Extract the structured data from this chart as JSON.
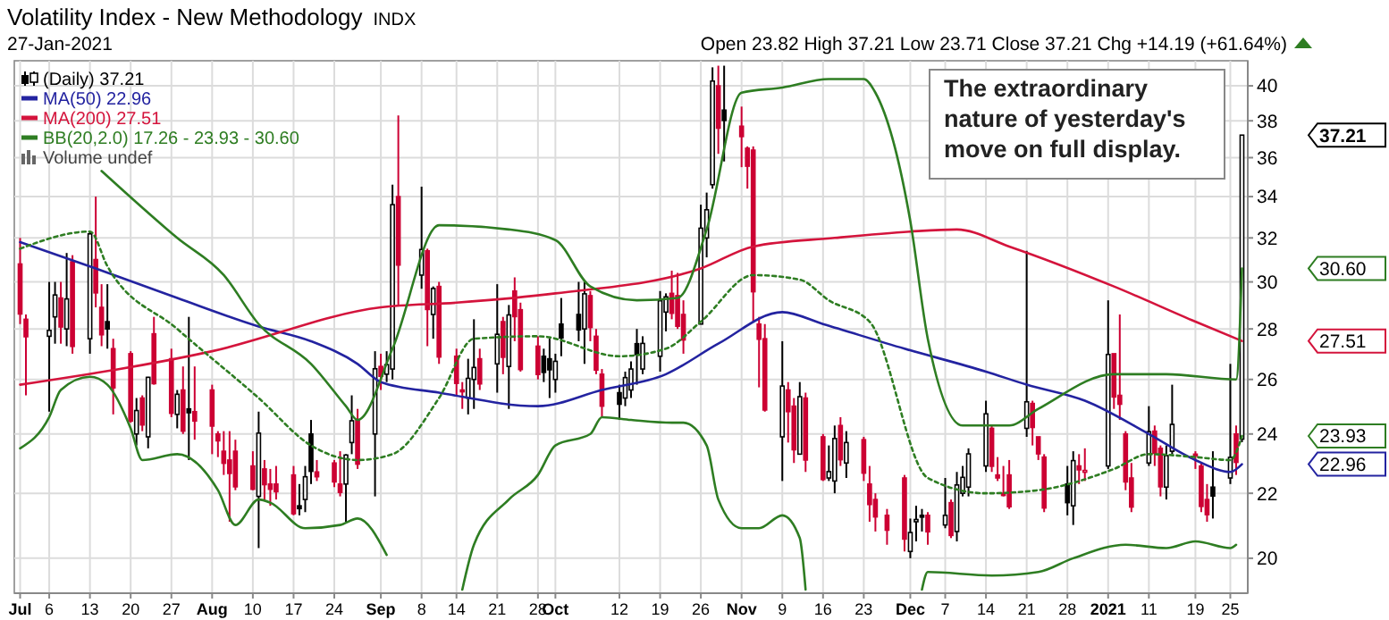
{
  "chart_data": {
    "type": "candlestick",
    "title": "Volatility Index - New Methodology",
    "subtitle": "27-Jan-2021",
    "annotations": [
      "INDX",
      "Open 23.82 High 37.21 Low 23.71 Close 37.21 Chg +14.19 (+61.64%)",
      "Volume undef",
      "The extraordinary nature of yesterday's move on full display.",
      "37.21",
      "30.60",
      "27.51",
      "23.93",
      "22.96"
    ],
    "x": [
      "2020-07-01",
      "2020-07-02",
      "2020-07-06",
      "2020-07-07",
      "2020-07-08",
      "2020-07-09",
      "2020-07-10",
      "2020-07-13",
      "2020-07-14",
      "2020-07-15",
      "2020-07-16",
      "2020-07-17",
      "2020-07-20",
      "2020-07-21",
      "2020-07-22",
      "2020-07-23",
      "2020-07-24",
      "2020-07-27",
      "2020-07-28",
      "2020-07-29",
      "2020-07-30",
      "2020-07-31",
      "2020-08-03",
      "2020-08-04",
      "2020-08-05",
      "2020-08-06",
      "2020-08-07",
      "2020-08-10",
      "2020-08-11",
      "2020-08-12",
      "2020-08-13",
      "2020-08-14",
      "2020-08-17",
      "2020-08-18",
      "2020-08-19",
      "2020-08-20",
      "2020-08-21",
      "2020-08-24",
      "2020-08-25",
      "2020-08-26",
      "2020-08-27",
      "2020-08-28",
      "2020-08-31",
      "2020-09-01",
      "2020-09-02",
      "2020-09-03",
      "2020-09-04",
      "2020-09-08",
      "2020-09-09",
      "2020-09-10",
      "2020-09-11",
      "2020-09-14",
      "2020-09-15",
      "2020-09-16",
      "2020-09-17",
      "2020-09-18",
      "2020-09-21",
      "2020-09-22",
      "2020-09-23",
      "2020-09-24",
      "2020-09-25",
      "2020-09-28",
      "2020-09-29",
      "2020-09-30",
      "2020-10-01",
      "2020-10-02",
      "2020-10-05",
      "2020-10-06",
      "2020-10-07",
      "2020-10-08",
      "2020-10-09",
      "2020-10-12",
      "2020-10-13",
      "2020-10-14",
      "2020-10-15",
      "2020-10-16",
      "2020-10-19",
      "2020-10-20",
      "2020-10-21",
      "2020-10-22",
      "2020-10-23",
      "2020-10-26",
      "2020-10-27",
      "2020-10-28",
      "2020-10-29",
      "2020-10-30",
      "2020-11-02",
      "2020-11-03",
      "2020-11-04",
      "2020-11-05",
      "2020-11-06",
      "2020-11-09",
      "2020-11-10",
      "2020-11-11",
      "2020-11-12",
      "2020-11-13",
      "2020-11-16",
      "2020-11-17",
      "2020-11-18",
      "2020-11-19",
      "2020-11-20",
      "2020-11-23",
      "2020-11-24",
      "2020-11-25",
      "2020-11-27",
      "2020-11-30",
      "2020-12-01",
      "2020-12-02",
      "2020-12-03",
      "2020-12-04",
      "2020-12-07",
      "2020-12-08",
      "2020-12-09",
      "2020-12-10",
      "2020-12-11",
      "2020-12-14",
      "2020-12-15",
      "2020-12-16",
      "2020-12-17",
      "2020-12-18",
      "2020-12-21",
      "2020-12-22",
      "2020-12-23",
      "2020-12-24",
      "2020-12-28",
      "2020-12-29",
      "2020-12-30",
      "2020-12-31",
      "2021-01-04",
      "2021-01-05",
      "2021-01-06",
      "2021-01-07",
      "2021-01-08",
      "2021-01-11",
      "2021-01-12",
      "2021-01-13",
      "2021-01-14",
      "2021-01-15",
      "2021-01-19",
      "2021-01-20",
      "2021-01-21",
      "2021-01-22",
      "2021-01-25",
      "2021-01-26",
      "2021-01-27"
    ],
    "xlim": [
      "2020-06-30",
      "2021-01-28"
    ],
    "xticks": [
      {
        "value": "2020-07-01",
        "label": "Jul"
      },
      {
        "value": "2020-07-06",
        "label": "6"
      },
      {
        "value": "2020-07-13",
        "label": "13"
      },
      {
        "value": "2020-07-20",
        "label": "20"
      },
      {
        "value": "2020-07-27",
        "label": "27"
      },
      {
        "value": "2020-08-03",
        "label": "Aug"
      },
      {
        "value": "2020-08-10",
        "label": "10"
      },
      {
        "value": "2020-08-17",
        "label": "17"
      },
      {
        "value": "2020-08-24",
        "label": "24"
      },
      {
        "value": "2020-09-01",
        "label": "Sep"
      },
      {
        "value": "2020-09-08",
        "label": "8"
      },
      {
        "value": "2020-09-14",
        "label": "14"
      },
      {
        "value": "2020-09-21",
        "label": "21"
      },
      {
        "value": "2020-09-28",
        "label": "28"
      },
      {
        "value": "2020-10-01",
        "label": "Oct"
      },
      {
        "value": "2020-10-12",
        "label": "12"
      },
      {
        "value": "2020-10-19",
        "label": "19"
      },
      {
        "value": "2020-10-26",
        "label": "26"
      },
      {
        "value": "2020-11-02",
        "label": "Nov"
      },
      {
        "value": "2020-11-09",
        "label": "9"
      },
      {
        "value": "2020-11-16",
        "label": "16"
      },
      {
        "value": "2020-11-23",
        "label": "23"
      },
      {
        "value": "2020-12-01",
        "label": "Dec"
      },
      {
        "value": "2020-12-07",
        "label": "7"
      },
      {
        "value": "2020-12-14",
        "label": "14"
      },
      {
        "value": "2020-12-21",
        "label": "21"
      },
      {
        "value": "2020-12-28",
        "label": "28"
      },
      {
        "value": "2021-01-04",
        "label": "2021"
      },
      {
        "value": "2021-01-11",
        "label": "11"
      },
      {
        "value": "2021-01-19",
        "label": "19"
      },
      {
        "value": "2021-01-25",
        "label": "25"
      }
    ],
    "ylim": [
      19,
      41.5
    ],
    "yticks": [
      20,
      22,
      24,
      26,
      28,
      30,
      32,
      34,
      36,
      38,
      40
    ],
    "log": true,
    "grid": true,
    "legend": "top left",
    "series": [
      {
        "type": "candlestick",
        "name": "(Daily) 37.21",
        "color": "#000000",
        "colors": [
          "#cc0033",
          "#cc0033",
          "#000000",
          "#000000",
          "#cc0033",
          "#000000",
          "#cc0033",
          "#000000",
          "#cc0033",
          "#cc0033",
          "#000000",
          "#cc0033",
          "#cc0033",
          "#000000",
          "#cc0033",
          "#000000",
          "#cc0033",
          "#cc0033",
          "#000000",
          "#cc0033",
          "#000000",
          "#cc0033",
          "#cc0033",
          "#cc0033",
          "#cc0033",
          "#cc0033",
          "#cc0033",
          "#cc0033",
          "#000000",
          "#cc0033",
          "#cc0033",
          "#cc0033",
          "#cc0033",
          "#000000",
          "#000000",
          "#000000",
          "#cc0033",
          "#cc0033",
          "#cc0033",
          "#000000",
          "#000000",
          "#cc0033",
          "#000000",
          "#cc0033",
          "#000000",
          "#000000",
          "#cc0033",
          "#000000",
          "#cc0033",
          "#000000",
          "#cc0033",
          "#cc0033",
          "#cc0033",
          "#000000",
          "#000000",
          "#cc0033",
          "#000000",
          "#cc0033",
          "#000000",
          "#cc0033",
          "#cc0033",
          "#cc0033",
          "#000000",
          "#000000",
          "#000000",
          "#000000",
          "#000000",
          "#000000",
          "#cc0033",
          "#cc0033",
          "#cc0033",
          "#000000",
          "#000000",
          "#000000",
          "#000000",
          "#000000",
          "#000000",
          "#000000",
          "#cc0033",
          "#cc0033",
          "#cc0033",
          "#000000",
          "#000000",
          "#000000",
          "#cc0033",
          "#000000",
          "#cc0033",
          "#cc0033",
          "#cc0033",
          "#cc0033",
          "#cc0033",
          "#000000",
          "#cc0033",
          "#cc0033",
          "#000000",
          "#cc0033",
          "#cc0033",
          "#000000",
          "#000000",
          "#cc0033",
          "#000000",
          "#cc0033",
          "#cc0033",
          "#cc0033",
          "#cc0033",
          "#cc0033",
          "#000000",
          "#000000",
          "#000000",
          "#cc0033",
          "#000000",
          "#cc0033",
          "#000000",
          "#000000",
          "#000000",
          "#000000",
          "#cc0033",
          "#cc0033",
          "#cc0033",
          "#cc0033",
          "#000000",
          "#cc0033",
          "#cc0033",
          "#cc0033",
          "#000000",
          "#000000",
          "#cc0033",
          "#cc0033",
          "#000000",
          "#cc0033",
          "#cc0033",
          "#cc0033",
          "#cc0033",
          "#000000",
          "#cc0033",
          "#cc0033",
          "#000000",
          "#000000",
          "#cc0033",
          "#cc0033",
          "#cc0033",
          "#000000",
          "#000000",
          "#cc0033",
          "#000000"
        ],
        "ohlc": [
          [
            30.8,
            32.0,
            28.2,
            28.62
          ],
          [
            28.4,
            28.6,
            25.4,
            27.68
          ],
          [
            27.7,
            30.0,
            24.8,
            27.94
          ],
          [
            28.5,
            30.0,
            27.4,
            29.43
          ],
          [
            29.3,
            30.0,
            27.4,
            28.08
          ],
          [
            28.0,
            31.3,
            27.3,
            29.26
          ],
          [
            30.9,
            31.2,
            27.0,
            27.29
          ],
          [
            27.6,
            32.3,
            27.0,
            32.19
          ],
          [
            31.0,
            34.0,
            28.9,
            29.52
          ],
          [
            28.9,
            29.9,
            27.3,
            27.76
          ],
          [
            28.3,
            29.9,
            27.2,
            28.0
          ],
          [
            27.2,
            27.6,
            24.7,
            25.68
          ],
          [
            27.0,
            27.1,
            24.4,
            24.46
          ],
          [
            24.0,
            25.3,
            23.6,
            24.84
          ],
          [
            25.3,
            25.4,
            24.1,
            24.32
          ],
          [
            23.9,
            26.1,
            23.5,
            26.08
          ],
          [
            27.8,
            28.5,
            25.8,
            25.84
          ],
          [
            26.8,
            27.2,
            24.6,
            24.74
          ],
          [
            24.7,
            25.6,
            24.2,
            25.44
          ],
          [
            25.6,
            26.5,
            24.0,
            24.1
          ],
          [
            24.9,
            28.5,
            23.1,
            24.76
          ],
          [
            24.8,
            26.5,
            23.8,
            24.46
          ],
          [
            25.6,
            25.8,
            23.3,
            24.28
          ],
          [
            24.0,
            24.1,
            23.2,
            23.76
          ],
          [
            23.4,
            24.1,
            22.6,
            22.99
          ],
          [
            23.1,
            24.1,
            21.1,
            22.65
          ],
          [
            23.4,
            23.8,
            22.1,
            22.21
          ],
          [
            22.9,
            23.4,
            22.1,
            22.13
          ],
          [
            21.9,
            24.8,
            20.3,
            24.03
          ],
          [
            22.8,
            23.1,
            21.8,
            22.28
          ],
          [
            22.3,
            22.8,
            21.6,
            22.13
          ],
          [
            22.3,
            22.9,
            21.8,
            22.05
          ],
          [
            22.6,
            22.9,
            21.3,
            21.35
          ],
          [
            21.6,
            22.3,
            21.3,
            21.51
          ],
          [
            21.8,
            22.9,
            21.4,
            22.54
          ],
          [
            24.0,
            24.5,
            22.3,
            22.72
          ],
          [
            22.7,
            23.1,
            22.4,
            22.54
          ],
          [
            23.0,
            23.1,
            22.2,
            22.37
          ],
          [
            22.3,
            23.4,
            21.9,
            22.03
          ],
          [
            22.3,
            23.3,
            21.1,
            23.27
          ],
          [
            23.7,
            25.4,
            23.3,
            24.47
          ],
          [
            24.5,
            24.9,
            22.8,
            22.96
          ],
          [
            24.0,
            27.1,
            21.9,
            26.41
          ],
          [
            26.5,
            27.0,
            25.6,
            26.12
          ],
          [
            26.2,
            27.1,
            25.9,
            26.57
          ],
          [
            26.4,
            34.6,
            26.0,
            33.6
          ],
          [
            34.0,
            38.3,
            29.0,
            30.75
          ],
          [
            30.3,
            34.5,
            29.7,
            31.46
          ],
          [
            31.4,
            31.5,
            27.3,
            28.81
          ],
          [
            28.6,
            29.8,
            27.6,
            29.71
          ],
          [
            29.8,
            30.0,
            26.6,
            26.87
          ],
          [
            26.9,
            27.2,
            25.4,
            25.85
          ],
          [
            25.6,
            25.9,
            24.9,
            25.59
          ],
          [
            25.3,
            26.8,
            24.7,
            26.04
          ],
          [
            26.0,
            28.4,
            24.9,
            26.46
          ],
          [
            26.8,
            27.2,
            25.6,
            25.83
          ],
          [
            26.6,
            29.9,
            25.5,
            27.78
          ],
          [
            28.3,
            28.5,
            26.2,
            26.86
          ],
          [
            26.5,
            29.0,
            24.9,
            28.58
          ],
          [
            29.6,
            30.2,
            27.5,
            28.51
          ],
          [
            28.8,
            29.1,
            26.3,
            26.38
          ],
          [
            27.3,
            27.7,
            26.0,
            26.19
          ],
          [
            26.9,
            27.2,
            25.9,
            26.27
          ],
          [
            26.8,
            27.6,
            25.3,
            26.37
          ],
          [
            26.0,
            27.0,
            25.5,
            26.7
          ],
          [
            28.2,
            29.3,
            26.9,
            27.63
          ],
          [
            28.6,
            30.0,
            27.5,
            27.96
          ],
          [
            28.0,
            30.0,
            26.6,
            29.48
          ],
          [
            29.4,
            29.6,
            27.5,
            28.06
          ],
          [
            27.7,
            28.0,
            26.2,
            26.36
          ],
          [
            26.2,
            26.4,
            24.6,
            25.0
          ],
          [
            25.5,
            25.8,
            24.5,
            25.07
          ],
          [
            25.3,
            26.3,
            25.0,
            26.07
          ],
          [
            25.6,
            26.7,
            25.3,
            26.4
          ],
          [
            27.4,
            28.0,
            25.8,
            26.97
          ],
          [
            26.4,
            27.7,
            26.2,
            27.41
          ],
          [
            26.9,
            29.6,
            26.3,
            29.18
          ],
          [
            28.7,
            29.5,
            27.9,
            29.35
          ],
          [
            29.5,
            30.5,
            28.4,
            28.65
          ],
          [
            29.4,
            30.4,
            28.0,
            28.11
          ],
          [
            28.6,
            29.2,
            27.0,
            27.55
          ],
          [
            28.2,
            33.6,
            28.2,
            32.46
          ],
          [
            32.0,
            34.2,
            31.1,
            33.35
          ],
          [
            34.6,
            41.1,
            34.4,
            40.28
          ],
          [
            40.0,
            41.2,
            36.2,
            37.59
          ],
          [
            38.6,
            41.2,
            35.8,
            38.02
          ],
          [
            37.7,
            38.8,
            35.5,
            37.13
          ],
          [
            36.5,
            36.6,
            34.4,
            35.55
          ],
          [
            36.4,
            36.6,
            28.3,
            29.57
          ],
          [
            28.2,
            28.5,
            25.7,
            27.58
          ],
          [
            27.6,
            28.2,
            24.8,
            24.86
          ],
          [
            23.9,
            27.5,
            22.4,
            25.75
          ],
          [
            25.6,
            25.9,
            23.7,
            24.8
          ],
          [
            25.0,
            25.3,
            23.0,
            23.45
          ],
          [
            23.3,
            25.9,
            23.3,
            25.35
          ],
          [
            25.3,
            25.5,
            22.7,
            23.1
          ],
          [
            23.9,
            24.0,
            22.4,
            22.45
          ],
          [
            22.5,
            23.6,
            22.4,
            22.71
          ],
          [
            22.4,
            24.3,
            22.0,
            23.84
          ],
          [
            24.3,
            24.6,
            22.9,
            23.11
          ],
          [
            23.0,
            24.1,
            22.5,
            23.7
          ],
          [
            23.8,
            23.9,
            22.4,
            22.66
          ],
          [
            22.3,
            22.9,
            21.1,
            21.64
          ],
          [
            21.8,
            22.0,
            20.8,
            21.25
          ],
          [
            21.3,
            21.5,
            20.4,
            20.84
          ],
          [
            22.5,
            22.6,
            20.2,
            20.57
          ],
          [
            20.2,
            21.2,
            20.0,
            20.77
          ],
          [
            21.1,
            21.6,
            20.5,
            21.17
          ],
          [
            21.3,
            21.5,
            20.8,
            21.28
          ],
          [
            21.3,
            21.4,
            20.4,
            20.79
          ],
          [
            21.0,
            22.5,
            20.9,
            21.3
          ],
          [
            21.7,
            21.8,
            20.6,
            20.68
          ],
          [
            20.8,
            22.7,
            20.5,
            22.27
          ],
          [
            22.0,
            22.9,
            21.9,
            22.52
          ],
          [
            22.2,
            23.5,
            21.9,
            23.31
          ],
          [
            22.9,
            25.2,
            22.7,
            24.72
          ],
          [
            24.2,
            24.3,
            22.7,
            22.89
          ],
          [
            22.6,
            23.2,
            22.4,
            22.5
          ],
          [
            22.0,
            22.9,
            21.9,
            21.93
          ],
          [
            22.6,
            23.1,
            21.5,
            21.57
          ],
          [
            24.2,
            31.4,
            23.9,
            25.16
          ],
          [
            25.1,
            25.2,
            23.6,
            24.23
          ],
          [
            23.9,
            23.9,
            23.1,
            23.31
          ],
          [
            23.2,
            23.3,
            21.4,
            21.53
          ],
          [
            22.3,
            22.9,
            21.3,
            21.7
          ],
          [
            21.6,
            23.4,
            21.0,
            23.08
          ],
          [
            22.9,
            23.3,
            22.3,
            22.77
          ],
          [
            22.7,
            23.5,
            22.4,
            22.75
          ],
          [
            22.9,
            29.2,
            22.8,
            26.97
          ],
          [
            27.0,
            27.0,
            24.9,
            25.34
          ],
          [
            25.4,
            28.6,
            24.5,
            25.07
          ],
          [
            24.0,
            24.1,
            22.1,
            22.37
          ],
          [
            22.5,
            23.0,
            21.4,
            21.56
          ],
          [
            23.0,
            25.0,
            22.9,
            24.08
          ],
          [
            24.1,
            24.3,
            22.9,
            23.33
          ],
          [
            23.5,
            23.6,
            21.9,
            22.21
          ],
          [
            22.2,
            23.6,
            21.8,
            23.25
          ],
          [
            23.4,
            25.8,
            23.3,
            24.34
          ],
          [
            23.3,
            23.4,
            22.8,
            23.24
          ],
          [
            22.9,
            23.0,
            21.4,
            21.58
          ],
          [
            21.8,
            22.3,
            21.1,
            21.32
          ],
          [
            22.2,
            23.4,
            21.2,
            21.91
          ],
          [
            22.5,
            26.6,
            22.3,
            23.19
          ],
          [
            24.0,
            24.3,
            22.6,
            23.02
          ],
          [
            23.82,
            37.21,
            23.71,
            37.21
          ]
        ]
      },
      {
        "type": "line",
        "name": "MA(50) 22.96",
        "color": "#2323a0",
        "x": [
          "2020-07-01",
          "2020-07-14",
          "2020-07-28",
          "2020-08-11",
          "2020-08-20",
          "2020-08-28",
          "2020-09-01",
          "2020-09-11",
          "2020-09-28",
          "2020-10-09",
          "2020-10-20",
          "2020-10-29",
          "2020-11-09",
          "2020-11-16",
          "2020-11-30",
          "2020-12-14",
          "2020-12-21",
          "2020-12-31",
          "2021-01-11",
          "2021-01-19",
          "2021-01-25",
          "2021-01-27"
        ],
        "values": [
          31.8,
          30.6,
          29.3,
          28.1,
          27.5,
          26.6,
          25.9,
          25.5,
          25.0,
          25.6,
          26.2,
          27.4,
          28.7,
          28.2,
          27.2,
          26.3,
          25.8,
          25.2,
          24.0,
          23.1,
          22.7,
          22.96
        ]
      },
      {
        "type": "line",
        "name": "MA(200) 27.51",
        "color": "#d4143c",
        "x": [
          "2020-07-01",
          "2020-08-03",
          "2020-09-01",
          "2020-09-14",
          "2020-10-01",
          "2020-10-26",
          "2020-11-04",
          "2020-11-18",
          "2020-12-01",
          "2020-12-09",
          "2020-12-18",
          "2021-01-05",
          "2021-01-19",
          "2021-01-27"
        ],
        "values": [
          25.8,
          27.1,
          28.9,
          29.1,
          29.5,
          30.6,
          31.6,
          32.0,
          32.3,
          32.4,
          31.6,
          29.8,
          28.3,
          27.51
        ]
      },
      {
        "type": "line",
        "name": "BB(20,2.0) 17.26 - 23.93 - 30.60",
        "color": "#2e7d22",
        "x": [
          "2020-07-15",
          "2020-07-28",
          "2020-08-05",
          "2020-08-11",
          "2020-08-20",
          "2020-08-26",
          "2020-08-28",
          "2020-09-03",
          "2020-09-11",
          "2020-09-23",
          "2020-10-01",
          "2020-10-07",
          "2020-10-15",
          "2020-10-22",
          "2020-10-27",
          "2020-11-02",
          "2020-11-09",
          "2020-11-17",
          "2020-11-23",
          "2020-11-25",
          "2020-12-01",
          "2020-12-04",
          "2020-12-10",
          "2020-12-18",
          "2020-12-23",
          "2021-01-05",
          "2021-01-14",
          "2021-01-26",
          "2021-01-27"
        ],
        "values": [
          35.3,
          32.0,
          30.3,
          28.2,
          26.6,
          25.0,
          24.5,
          27.2,
          32.6,
          32.4,
          31.9,
          29.8,
          29.2,
          29.3,
          32.4,
          39.6,
          39.9,
          40.4,
          40.4,
          39.6,
          32.8,
          27.6,
          24.3,
          24.3,
          24.9,
          26.2,
          26.2,
          26.0,
          30.6
        ]
      },
      {
        "type": "line",
        "color": "#2e7d22",
        "line_style": "dotted",
        "x": [
          "2020-07-01",
          "2020-07-13",
          "2020-07-16",
          "2020-07-28",
          "2020-08-11",
          "2020-08-20",
          "2020-08-28",
          "2020-09-03",
          "2020-09-11",
          "2020-09-17",
          "2020-09-28",
          "2020-10-12",
          "2020-10-20",
          "2020-10-26",
          "2020-11-04",
          "2020-11-12",
          "2020-11-17",
          "2020-11-24",
          "2020-12-04",
          "2020-12-14",
          "2020-12-23",
          "2021-01-05",
          "2021-01-11",
          "2021-01-19",
          "2021-01-25",
          "2021-01-27"
        ],
        "values": [
          31.5,
          32.3,
          30.7,
          28.0,
          25.3,
          23.6,
          23.1,
          23.3,
          25.3,
          27.6,
          27.7,
          26.9,
          27.2,
          28.3,
          30.3,
          30.1,
          29.2,
          28.3,
          22.5,
          22.0,
          22.1,
          22.8,
          23.3,
          23.2,
          23.1,
          23.93
        ]
      },
      {
        "type": "line",
        "color": "#2e7d22",
        "x": [
          "2020-07-01",
          "2020-07-06",
          "2020-07-08",
          "2020-07-13",
          "2020-07-16",
          "2020-07-20",
          "2020-07-22",
          "2020-07-28",
          "2020-08-04",
          "2020-08-07",
          "2020-08-11",
          "2020-08-13",
          "2020-08-19",
          "2020-08-25",
          "2020-08-28",
          "2020-09-02",
          "2020-09-03",
          "2020-09-14",
          "2020-09-15",
          "2020-09-17",
          "2020-09-23",
          "2020-09-28",
          "2020-10-01",
          "2020-10-07",
          "2020-10-09",
          "2020-10-14",
          "2020-10-21",
          "2020-10-23",
          "2020-10-27",
          "2020-10-29",
          "2020-11-02",
          "2020-11-05",
          "2020-11-09",
          "2020-11-12",
          "2020-11-13",
          "2020-11-16",
          "2020-12-02",
          "2020-12-03",
          "2020-12-04",
          "2020-12-15",
          "2020-12-23",
          "2020-12-29",
          "2021-01-07",
          "2021-01-14",
          "2021-01-19",
          "2021-01-25",
          "2021-01-26"
        ],
        "values": [
          23.5,
          24.6,
          25.6,
          26.1,
          25.8,
          24.2,
          23.1,
          23.3,
          22.1,
          21.0,
          21.8,
          21.7,
          20.9,
          21.0,
          21.2,
          20.1,
          null,
          null,
          19.1,
          20.4,
          21.8,
          22.6,
          23.6,
          24.0,
          24.6,
          24.5,
          24.4,
          24.4,
          23.6,
          21.8,
          20.9,
          20.9,
          21.3,
          20.6,
          19.1,
          null,
          null,
          19.1,
          19.6,
          19.5,
          19.6,
          20.0,
          20.4,
          20.3,
          20.5,
          20.3,
          20.4
        ]
      }
    ]
  }
}
